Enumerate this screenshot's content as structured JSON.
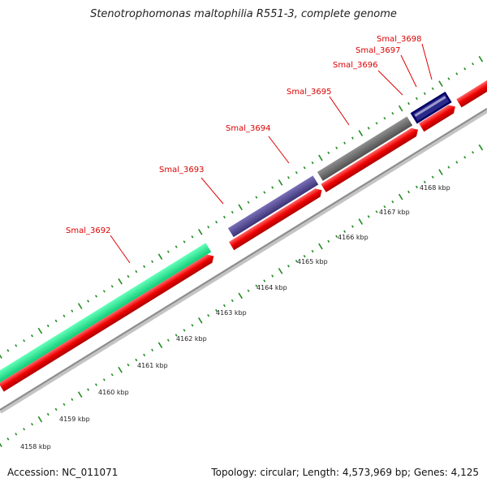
{
  "title": "Stenotrophomonas maltophilia R551-3, complete genome",
  "accession": "Accession: NC_011071",
  "topology": "Topology: circular; Length: 4,573,969 bp; Genes: 4,125",
  "colors": {
    "cds": "#ee0000",
    "backbone": "#808080",
    "tick": "#228b22",
    "label": "#dd0000",
    "green_feature": "#22ee88",
    "purple_feature": "#4b3f8c",
    "gray_feature": "#606060",
    "navy_feature": "#000066"
  },
  "gene_labels": [
    "Smal_3692",
    "Smal_3693",
    "Smal_3694",
    "Smal_3695",
    "Smal_3696",
    "Smal_3697",
    "Smal_3698"
  ],
  "kbp_labels": [
    "4158 kbp",
    "4159 kbp",
    "4160 kbp",
    "4161 kbp",
    "4162 kbp",
    "4163 kbp",
    "4164 kbp",
    "4165 kbp",
    "4166 kbp",
    "4167 kbp",
    "4168 kbp"
  ]
}
